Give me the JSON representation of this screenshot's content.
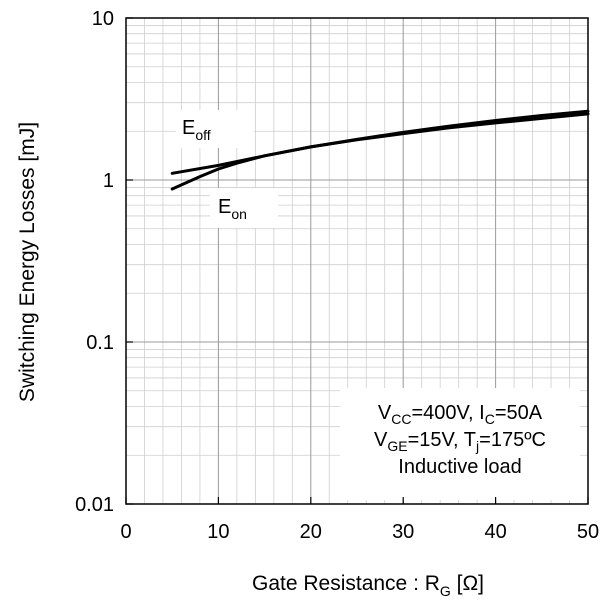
{
  "chart_data": {
    "type": "line",
    "xlabel": {
      "main": "Gate Resistance : R",
      "sub": "G",
      "tail": " [Ω]"
    },
    "ylabel": "Switching Energy Losses [mJ]",
    "xlim": [
      0,
      50
    ],
    "ylim": [
      0.01,
      10
    ],
    "yscale": "log",
    "grid": true,
    "x_ticks": [
      "0",
      "10",
      "20",
      "30",
      "40",
      "50"
    ],
    "y_ticks": [
      "0.01",
      "0.1",
      "1",
      "10"
    ],
    "series": [
      {
        "name": {
          "main": "E",
          "sub": "off"
        },
        "x": [
          5,
          10,
          15,
          20,
          25,
          30,
          35,
          40,
          45,
          50
        ],
        "y": [
          1.1,
          1.23,
          1.41,
          1.6,
          1.78,
          1.97,
          2.15,
          2.33,
          2.5,
          2.66
        ]
      },
      {
        "name": {
          "main": "E",
          "sub": "on"
        },
        "x": [
          5,
          8,
          10,
          12,
          15,
          20,
          25,
          30,
          35,
          40,
          45,
          50
        ],
        "y": [
          0.88,
          1.05,
          1.17,
          1.27,
          1.41,
          1.6,
          1.77,
          1.93,
          2.1,
          2.25,
          2.4,
          2.56
        ]
      }
    ],
    "conditions": {
      "line1": {
        "a": "V",
        "a_sub": "CC",
        "b": "=400V, I",
        "b_sub": "C",
        "c": "=50A"
      },
      "line2": {
        "a": "V",
        "a_sub": "GE",
        "b": "=15V, T",
        "b_sub": "j",
        "c": "=175ºC"
      },
      "line3": "Inductive  load"
    },
    "legend_placement": "inline labels near curves, upper-left"
  }
}
